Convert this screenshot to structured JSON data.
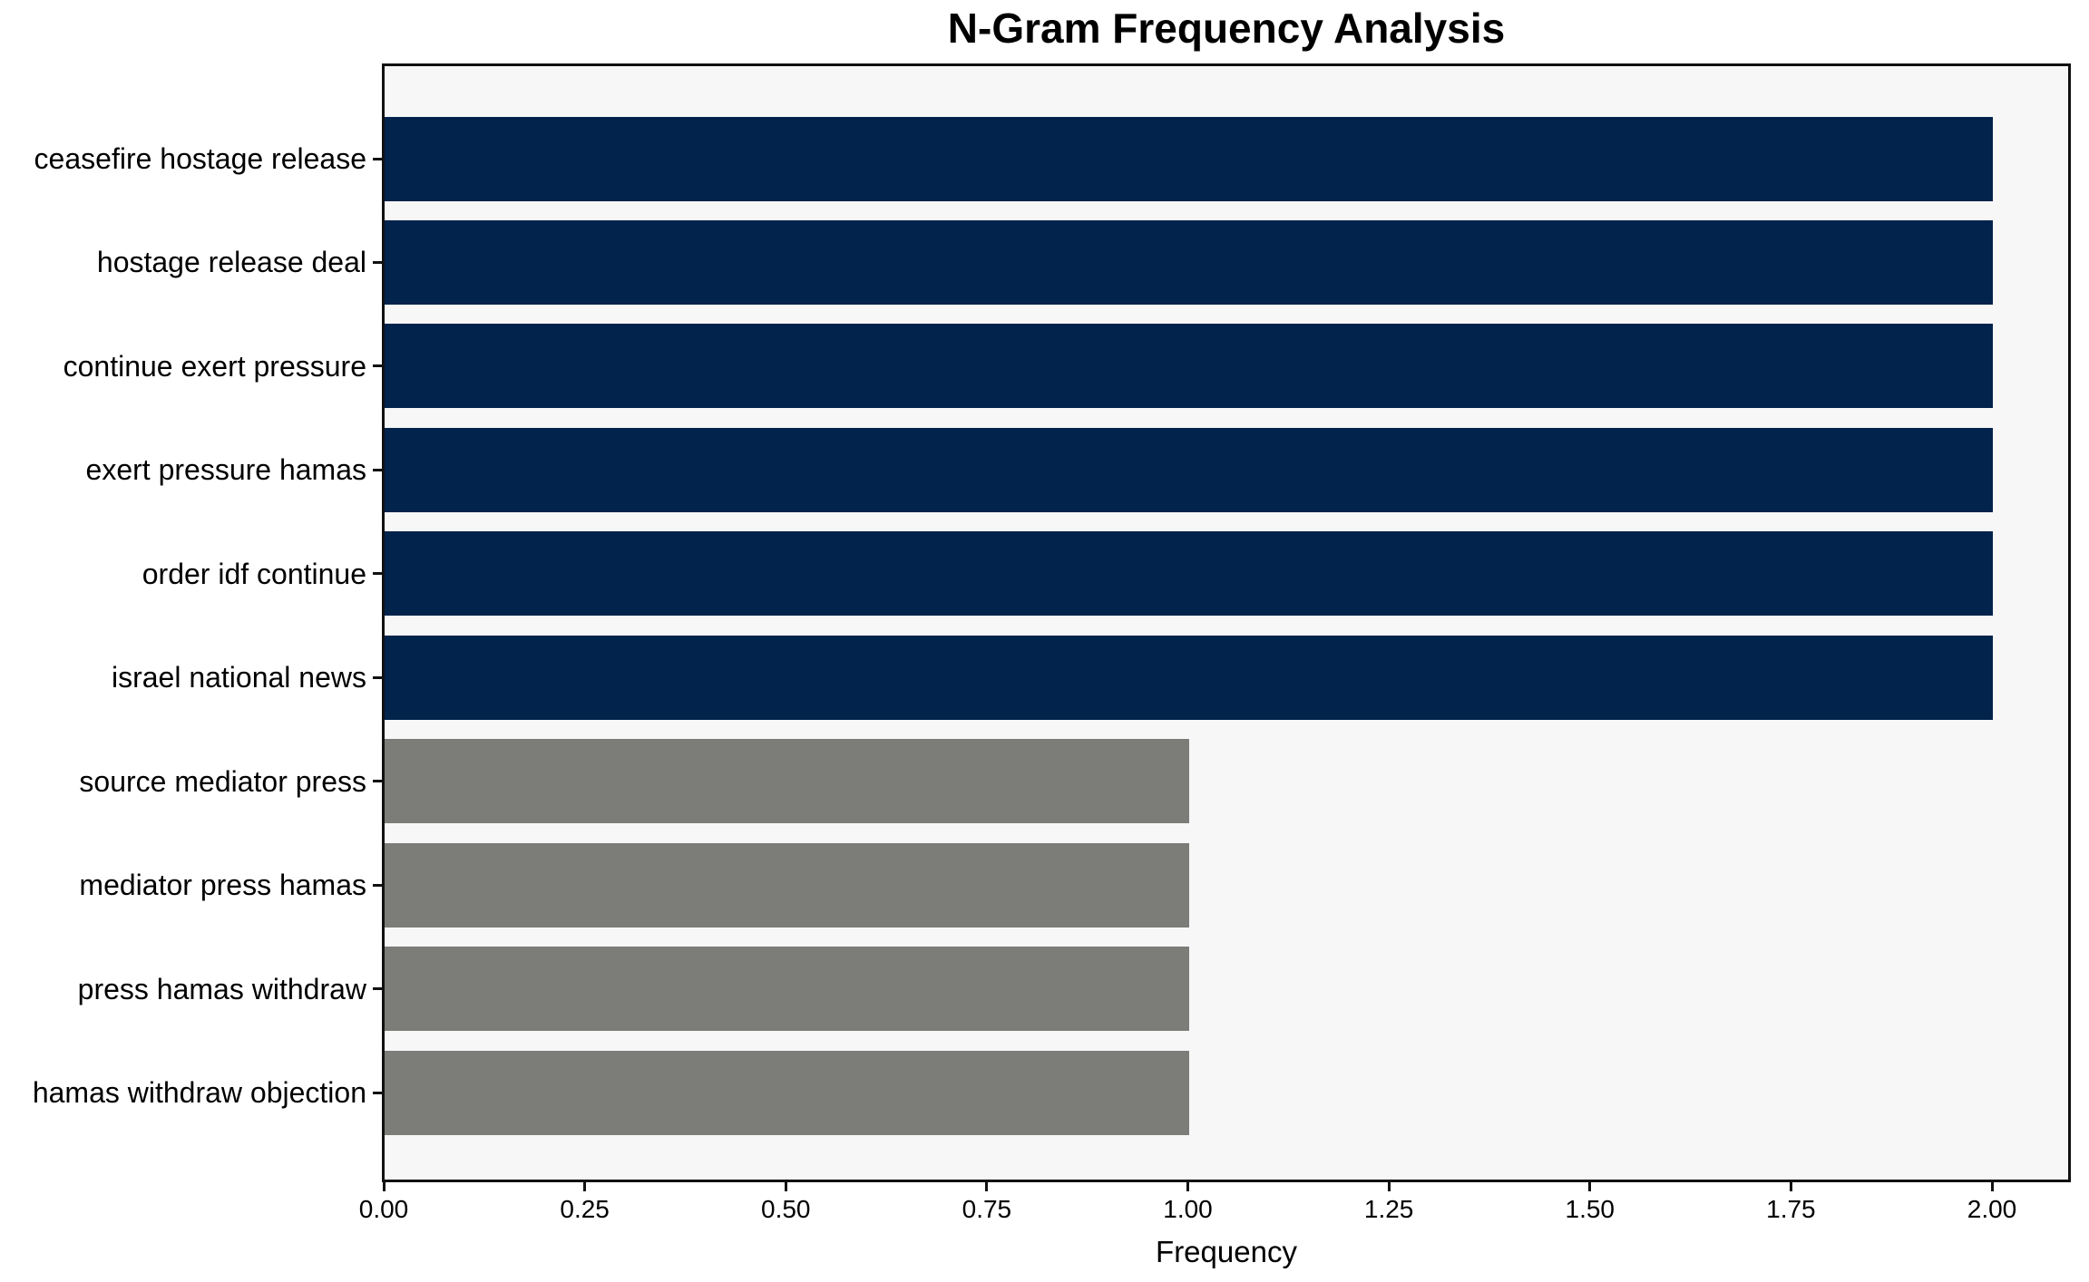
{
  "page": {
    "background": "#ffffff"
  },
  "chart_data": {
    "type": "bar",
    "orientation": "horizontal",
    "title": "N-Gram Frequency Analysis",
    "xlabel": "Frequency",
    "ylabel": "",
    "categories": [
      "ceasefire hostage release",
      "hostage release deal",
      "continue exert pressure",
      "exert pressure hamas",
      "order idf continue",
      "israel national news",
      "source mediator press",
      "mediator press hamas",
      "press hamas withdraw",
      "hamas withdraw objection"
    ],
    "values": [
      2,
      2,
      2,
      2,
      2,
      2,
      1,
      1,
      1,
      1
    ],
    "bar_colors": [
      "#02234c",
      "#02234c",
      "#02234c",
      "#02234c",
      "#02234c",
      "#02234c",
      "#7c7c79",
      "#7c7c79",
      "#7c7c79",
      "#7c7c79"
    ],
    "xlim": [
      0,
      2.1
    ],
    "xticks": {
      "values": [
        0.0,
        0.25,
        0.5,
        0.75,
        1.0,
        1.25,
        1.5,
        1.75,
        2.0
      ],
      "labels": [
        "0.00",
        "0.25",
        "0.50",
        "0.75",
        "1.00",
        "1.25",
        "1.50",
        "1.75",
        "2.00"
      ]
    },
    "grid": false,
    "legend": null,
    "colors": {
      "bar_high": "#02234c",
      "bar_low": "#7c7c79",
      "plot_background": "#f7f7f7",
      "spine": "#111111",
      "text": "#000000"
    }
  }
}
